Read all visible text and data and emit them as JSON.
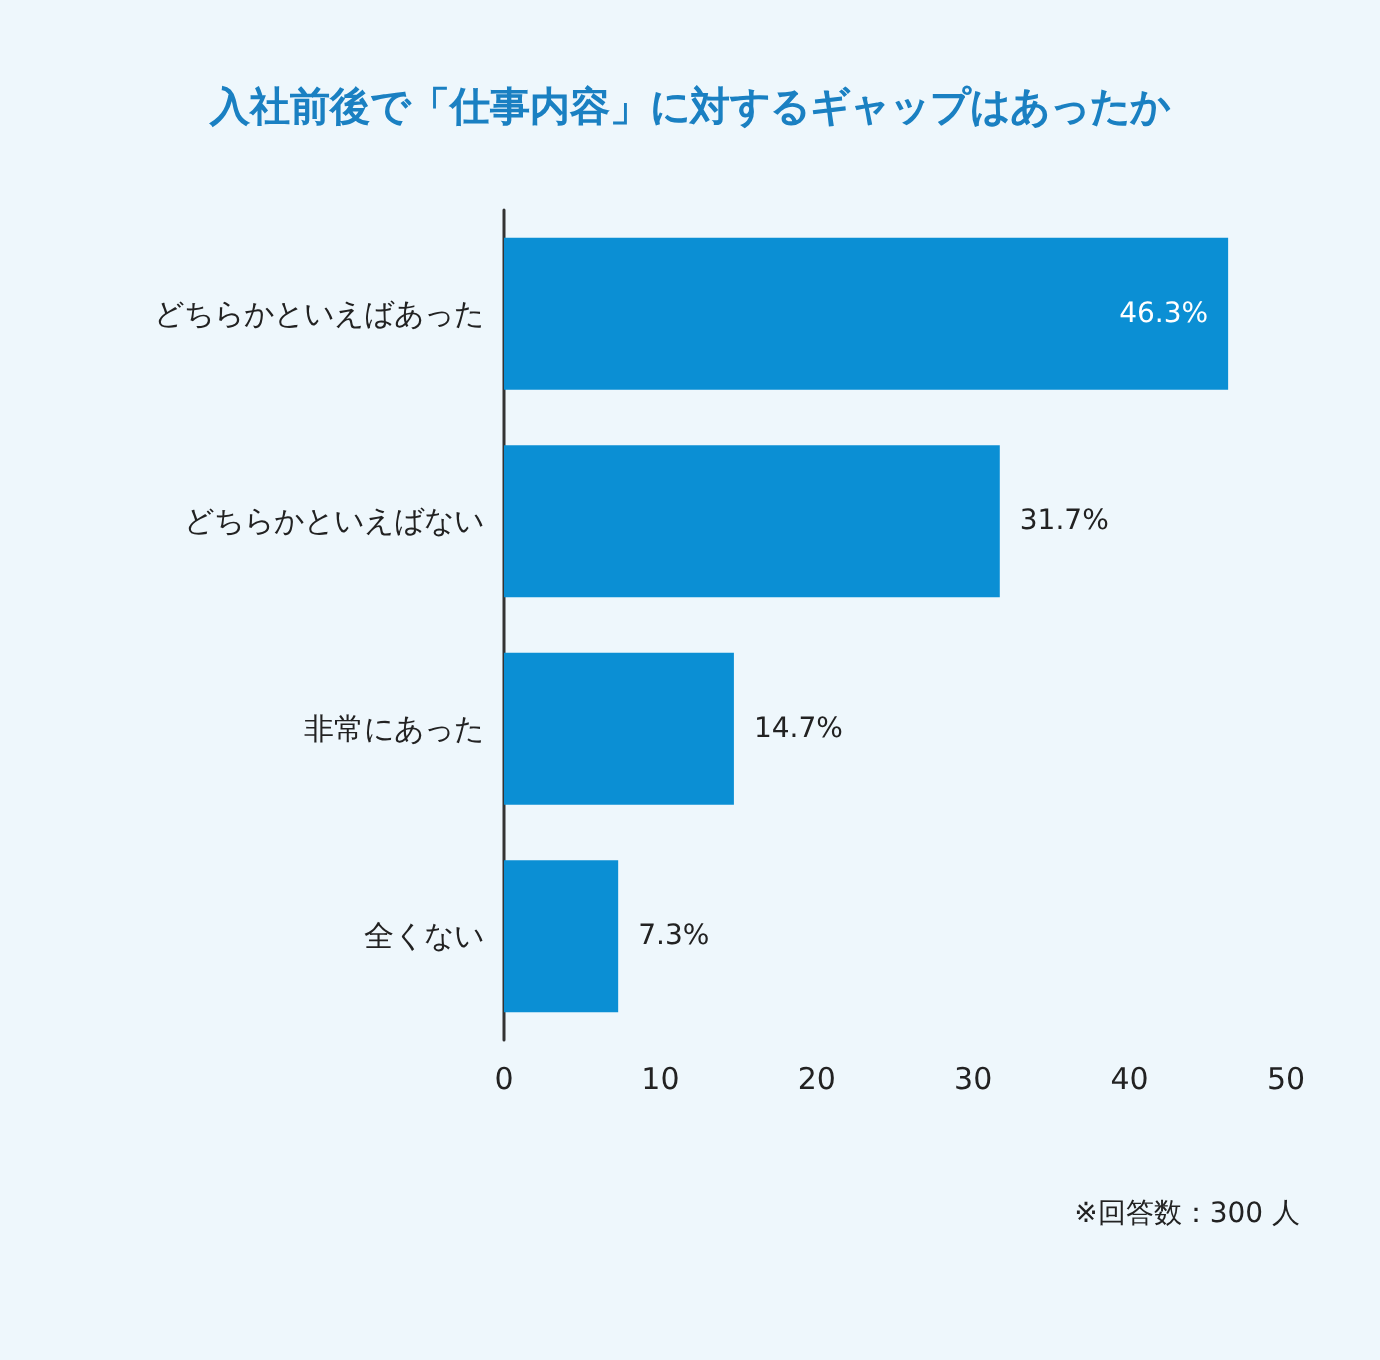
{
  "chart_data": {
    "type": "bar",
    "orientation": "horizontal",
    "title": "入社前後で「仕事内容」に対するギャップはあったか",
    "categories": [
      "どちらかといえばあった",
      "どちらかといえばない",
      "非常にあった",
      "全くない"
    ],
    "values": [
      46.3,
      31.7,
      14.7,
      7.3
    ],
    "value_labels": [
      "46.3%",
      "31.7%",
      "14.7%",
      "7.3%"
    ],
    "color": "#0b8fd4",
    "xlim": [
      0,
      50
    ],
    "xticks": [
      0,
      10,
      20,
      30,
      40,
      50
    ],
    "grid": false,
    "annotations": [
      "※回答数：300 人"
    ]
  }
}
